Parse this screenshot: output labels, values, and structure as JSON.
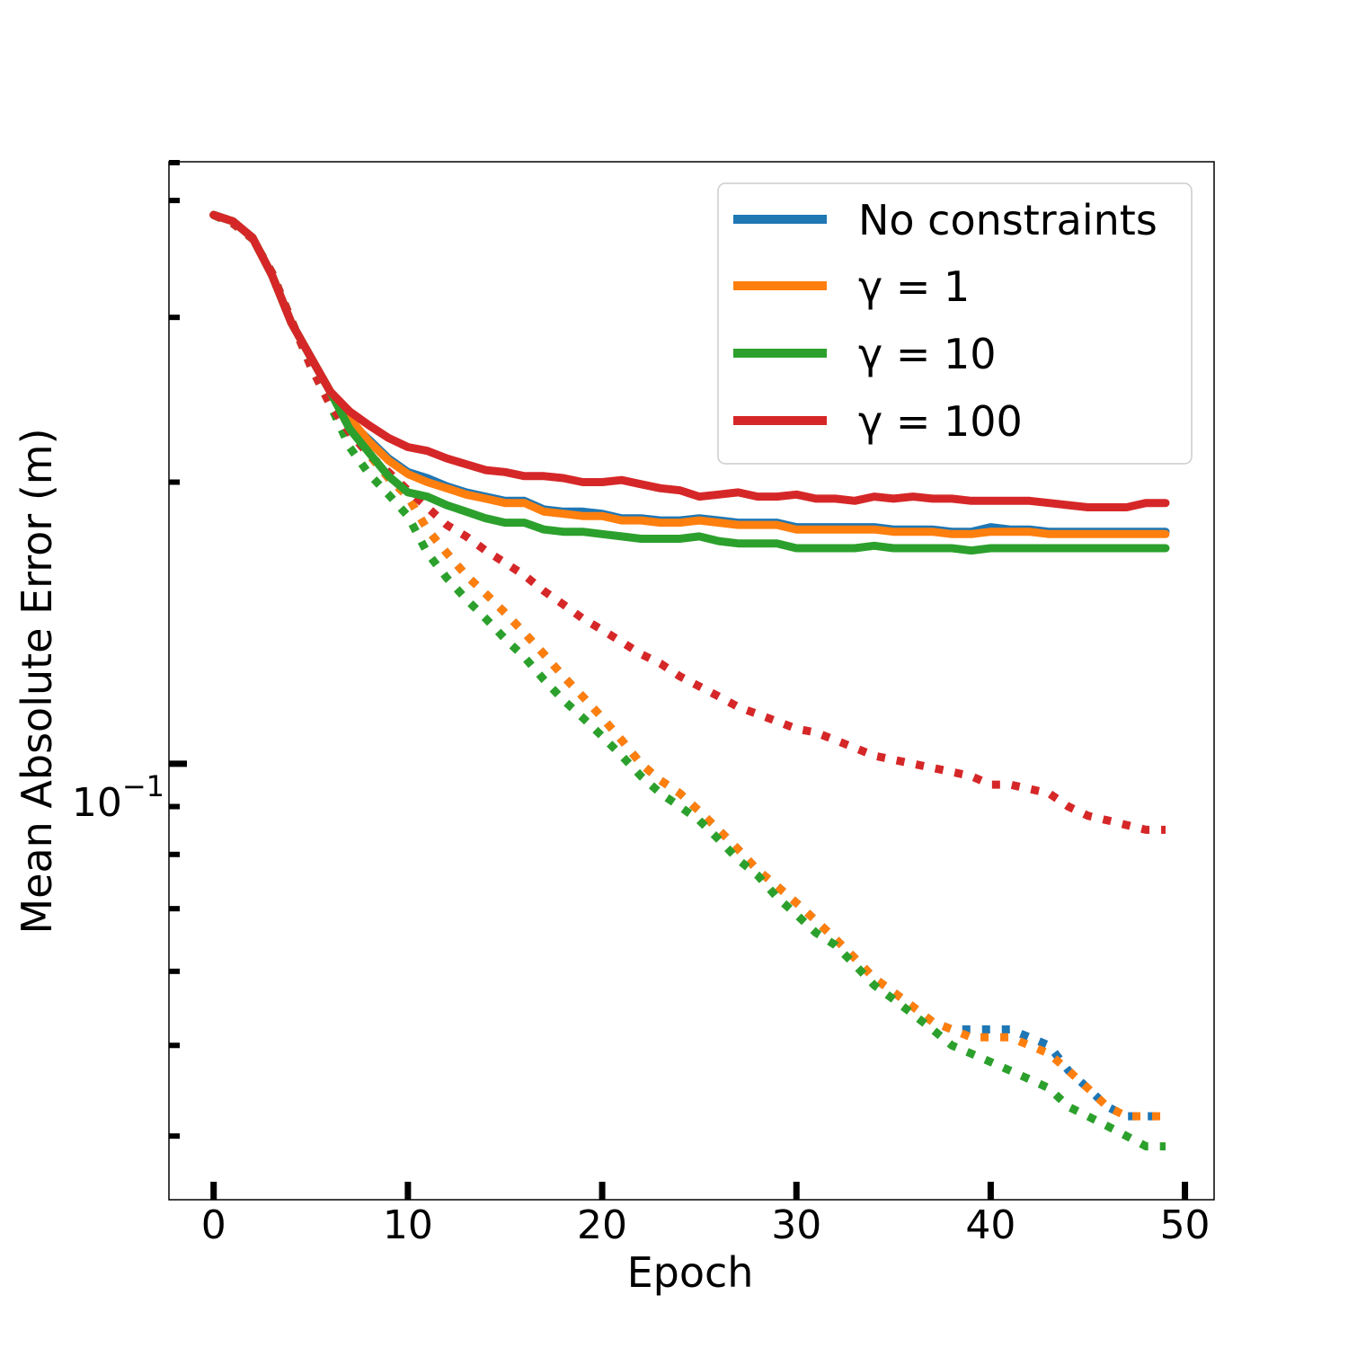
{
  "chart_data": {
    "type": "line",
    "xlabel": "Epoch",
    "ylabel": "Mean Absolute Error (m)",
    "xlim": [
      -2.3,
      51.5
    ],
    "ylim": [
      0.0342,
      0.44
    ],
    "yscale": "log",
    "x_ticks": [
      0,
      10,
      20,
      30,
      40,
      50
    ],
    "y_major_tick": {
      "value": 0.1,
      "base": "10",
      "exponent": "−1"
    },
    "y_minor_ticks": [
      0.04,
      0.05,
      0.06,
      0.07,
      0.08,
      0.09,
      0.2,
      0.3,
      0.4
    ],
    "legend_position": "top-right",
    "legend_entries": [
      "No constraints",
      "γ = 1",
      "γ = 10",
      "γ = 100"
    ],
    "colors": {
      "blue": "#1f77b4",
      "orange": "#ff7f0e",
      "green": "#2ca02c",
      "red": "#d62728"
    },
    "series": [
      {
        "name": "No constraints",
        "color": "#1f77b4",
        "style": "solid",
        "values": [
          0.386,
          0.38,
          0.365,
          0.333,
          0.296,
          0.272,
          0.25,
          0.232,
          0.222,
          0.212,
          0.205,
          0.202,
          0.198,
          0.195,
          0.193,
          0.191,
          0.191,
          0.187,
          0.186,
          0.186,
          0.185,
          0.183,
          0.183,
          0.182,
          0.182,
          0.183,
          0.182,
          0.181,
          0.181,
          0.181,
          0.179,
          0.179,
          0.179,
          0.179,
          0.179,
          0.178,
          0.178,
          0.178,
          0.177,
          0.177,
          0.179,
          0.178,
          0.178,
          0.177,
          0.177,
          0.177,
          0.177,
          0.177,
          0.177,
          0.177
        ]
      },
      {
        "name": "γ = 1",
        "color": "#ff7f0e",
        "style": "solid",
        "values": [
          0.386,
          0.38,
          0.365,
          0.333,
          0.296,
          0.272,
          0.25,
          0.234,
          0.221,
          0.211,
          0.204,
          0.2,
          0.197,
          0.194,
          0.192,
          0.19,
          0.19,
          0.186,
          0.185,
          0.184,
          0.184,
          0.182,
          0.182,
          0.181,
          0.181,
          0.182,
          0.181,
          0.18,
          0.18,
          0.18,
          0.178,
          0.178,
          0.178,
          0.178,
          0.178,
          0.177,
          0.177,
          0.177,
          0.176,
          0.176,
          0.177,
          0.177,
          0.177,
          0.176,
          0.176,
          0.176,
          0.176,
          0.176,
          0.176,
          0.176
        ]
      },
      {
        "name": "γ = 10",
        "color": "#2ca02c",
        "style": "solid",
        "values": [
          0.386,
          0.38,
          0.365,
          0.333,
          0.296,
          0.272,
          0.25,
          0.228,
          0.215,
          0.203,
          0.195,
          0.193,
          0.189,
          0.186,
          0.183,
          0.181,
          0.181,
          0.178,
          0.177,
          0.177,
          0.176,
          0.175,
          0.174,
          0.174,
          0.174,
          0.175,
          0.173,
          0.172,
          0.172,
          0.172,
          0.17,
          0.17,
          0.17,
          0.17,
          0.171,
          0.17,
          0.17,
          0.17,
          0.17,
          0.169,
          0.17,
          0.17,
          0.17,
          0.17,
          0.17,
          0.17,
          0.17,
          0.17,
          0.17,
          0.17
        ]
      },
      {
        "name": "γ = 100",
        "color": "#d62728",
        "style": "solid",
        "values": [
          0.386,
          0.38,
          0.365,
          0.333,
          0.296,
          0.272,
          0.25,
          0.238,
          0.23,
          0.223,
          0.218,
          0.216,
          0.212,
          0.209,
          0.206,
          0.205,
          0.203,
          0.203,
          0.202,
          0.2,
          0.2,
          0.201,
          0.199,
          0.197,
          0.196,
          0.193,
          0.194,
          0.195,
          0.193,
          0.193,
          0.194,
          0.192,
          0.192,
          0.191,
          0.193,
          0.192,
          0.193,
          0.192,
          0.192,
          0.191,
          0.191,
          0.191,
          0.191,
          0.19,
          0.189,
          0.188,
          0.188,
          0.188,
          0.19,
          0.19
        ]
      },
      {
        "name": "No constraints (dotted)",
        "color": "#1f77b4",
        "style": "dotted",
        "values": [
          0.386,
          0.378,
          0.364,
          0.335,
          0.298,
          0.266,
          0.242,
          0.226,
          0.214,
          0.202,
          0.193,
          0.178,
          0.168,
          0.159,
          0.152,
          0.145,
          0.138,
          0.131,
          0.124,
          0.118,
          0.112,
          0.106,
          0.1,
          0.096,
          0.093,
          0.089,
          0.085,
          0.081,
          0.077,
          0.074,
          0.071,
          0.068,
          0.065,
          0.062,
          0.059,
          0.057,
          0.055,
          0.053,
          0.052,
          0.052,
          0.052,
          0.052,
          0.051,
          0.05,
          0.047,
          0.045,
          0.043,
          0.042,
          0.042,
          0.042
        ]
      },
      {
        "name": "γ = 1 (dotted)",
        "color": "#ff7f0e",
        "style": "dotted",
        "values": [
          0.386,
          0.378,
          0.364,
          0.335,
          0.298,
          0.266,
          0.242,
          0.226,
          0.214,
          0.202,
          0.193,
          0.178,
          0.168,
          0.159,
          0.152,
          0.145,
          0.138,
          0.131,
          0.124,
          0.118,
          0.112,
          0.106,
          0.1,
          0.096,
          0.093,
          0.089,
          0.085,
          0.081,
          0.077,
          0.074,
          0.071,
          0.068,
          0.065,
          0.062,
          0.059,
          0.057,
          0.055,
          0.053,
          0.052,
          0.051,
          0.051,
          0.051,
          0.05,
          0.049,
          0.047,
          0.045,
          0.043,
          0.042,
          0.042,
          0.042
        ]
      },
      {
        "name": "γ = 10 (dotted)",
        "color": "#2ca02c",
        "style": "dotted",
        "values": [
          0.386,
          0.378,
          0.364,
          0.335,
          0.298,
          0.266,
          0.242,
          0.218,
          0.204,
          0.194,
          0.184,
          0.168,
          0.158,
          0.15,
          0.143,
          0.136,
          0.13,
          0.123,
          0.117,
          0.112,
          0.107,
          0.102,
          0.097,
          0.093,
          0.09,
          0.087,
          0.083,
          0.079,
          0.076,
          0.072,
          0.069,
          0.066,
          0.064,
          0.061,
          0.058,
          0.056,
          0.054,
          0.052,
          0.05,
          0.049,
          0.048,
          0.047,
          0.046,
          0.045,
          0.043,
          0.042,
          0.041,
          0.04,
          0.039,
          0.039
        ]
      },
      {
        "name": "γ = 100 (dotted)",
        "color": "#d62728",
        "style": "dotted",
        "values": [
          0.386,
          0.378,
          0.364,
          0.335,
          0.298,
          0.266,
          0.242,
          0.226,
          0.214,
          0.205,
          0.196,
          0.188,
          0.18,
          0.175,
          0.169,
          0.164,
          0.159,
          0.153,
          0.148,
          0.143,
          0.139,
          0.135,
          0.131,
          0.128,
          0.124,
          0.121,
          0.118,
          0.115,
          0.113,
          0.111,
          0.109,
          0.108,
          0.106,
          0.104,
          0.102,
          0.101,
          0.1,
          0.099,
          0.098,
          0.097,
          0.095,
          0.095,
          0.094,
          0.093,
          0.09,
          0.088,
          0.087,
          0.086,
          0.085,
          0.085
        ]
      }
    ]
  }
}
